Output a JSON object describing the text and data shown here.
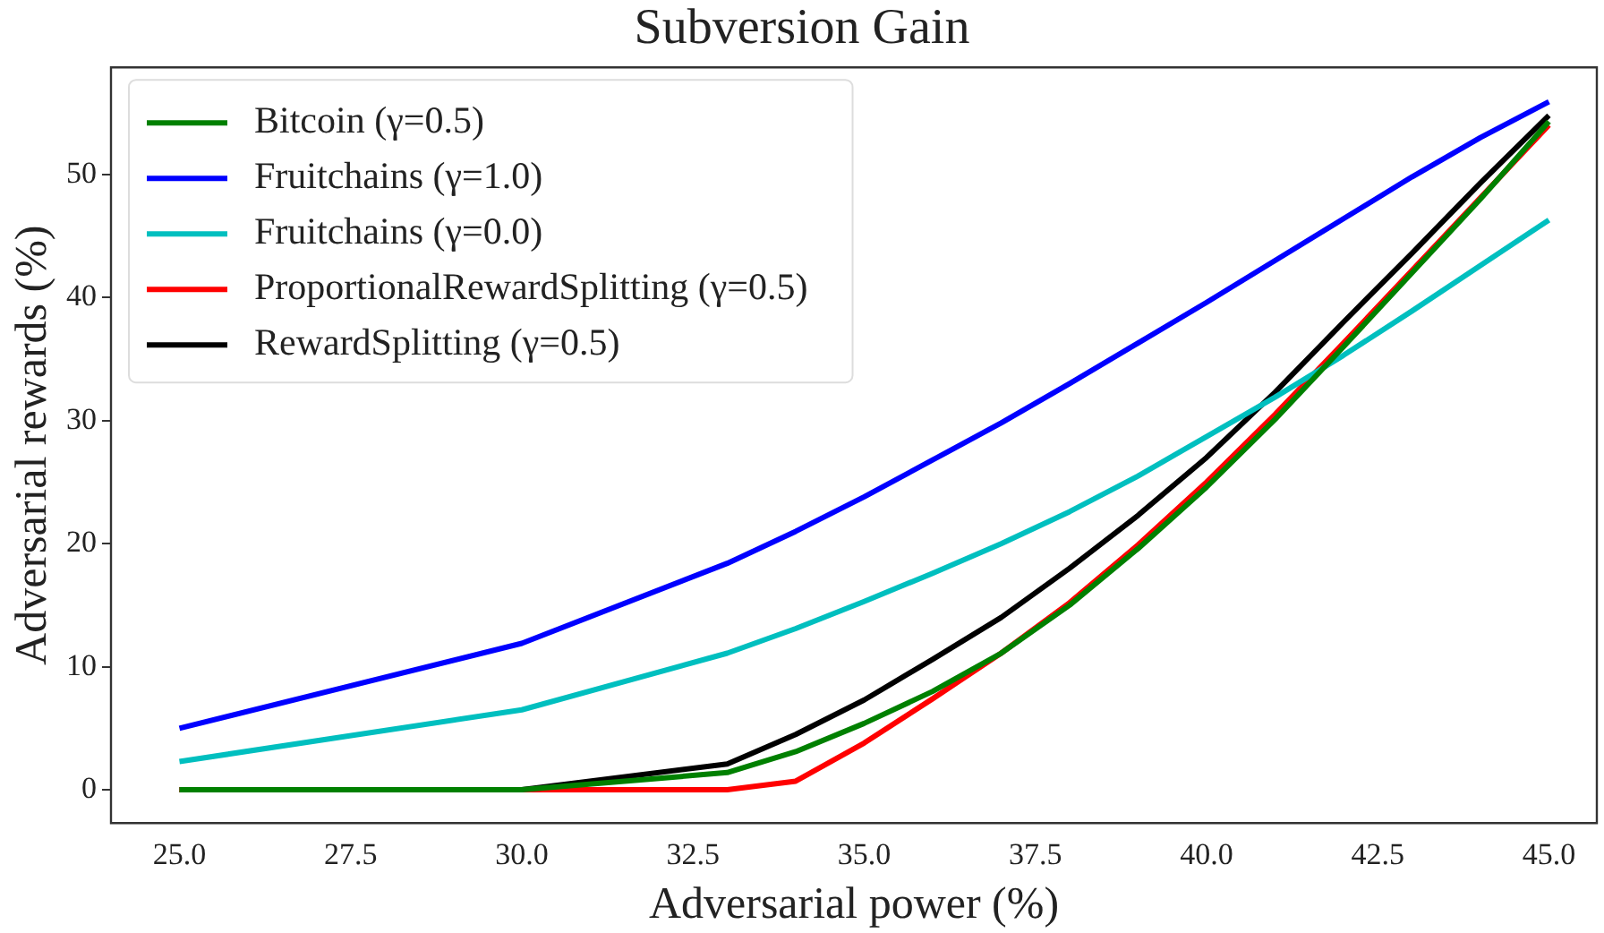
{
  "chart_data": {
    "type": "line",
    "title": "Subversion Gain",
    "xlabel": "Adversarial power (%)",
    "ylabel": "Adversarial rewards (%)",
    "x": [
      25,
      30,
      33,
      34,
      35,
      36,
      37,
      38,
      39,
      40,
      41,
      42,
      43,
      44,
      45
    ],
    "xlim": [
      24,
      45.7
    ],
    "ylim": [
      -2.7,
      58.7
    ],
    "xticks": [
      {
        "value": 25,
        "label": "25.0"
      },
      {
        "value": 27.5,
        "label": "27.5"
      },
      {
        "value": 30,
        "label": "30.0"
      },
      {
        "value": 32.5,
        "label": "32.5"
      },
      {
        "value": 35,
        "label": "35.0"
      },
      {
        "value": 37.5,
        "label": "37.5"
      },
      {
        "value": 40,
        "label": "40.0"
      },
      {
        "value": 42.5,
        "label": "42.5"
      },
      {
        "value": 45,
        "label": "45.0"
      }
    ],
    "yticks": [
      0,
      10,
      20,
      30,
      40,
      50
    ],
    "grid": false,
    "legend": "top left",
    "marker": "none",
    "line_style": "solid",
    "series": [
      {
        "name": "Bitcoin (γ=0.5)",
        "color": "#008000",
        "values": [
          0,
          0,
          1.4,
          3.1,
          5.4,
          8,
          11.1,
          15,
          19.6,
          24.6,
          30.1,
          36,
          42,
          48,
          54.3
        ]
      },
      {
        "name": "Fruitchains (γ=1.0)",
        "color": "#0000ff",
        "values": [
          5,
          11.9,
          18.4,
          21,
          23.8,
          26.8,
          29.8,
          33,
          36.3,
          39.6,
          43,
          46.4,
          49.8,
          53,
          55.9
        ]
      },
      {
        "name": "Fruitchains (γ=0.0)",
        "color": "#00bfbf",
        "values": [
          2.3,
          6.5,
          11.1,
          13.1,
          15.3,
          17.6,
          20,
          22.6,
          25.5,
          28.7,
          31.9,
          35.3,
          38.9,
          42.6,
          46.3
        ]
      },
      {
        "name": "ProportionalRewardSplitting (γ=0.5)",
        "color": "#ff0000",
        "values": [
          0,
          0,
          0,
          0.7,
          3.8,
          7.4,
          11.1,
          15.2,
          19.9,
          25,
          30.5,
          36.3,
          42.2,
          48.1,
          54
        ]
      },
      {
        "name": "RewardSplitting (γ=0.5)",
        "color": "#000000",
        "values": [
          0,
          0,
          2.1,
          4.5,
          7.3,
          10.6,
          14,
          18,
          22.3,
          27,
          32.3,
          38,
          43.6,
          49.3,
          54.8
        ]
      }
    ]
  }
}
